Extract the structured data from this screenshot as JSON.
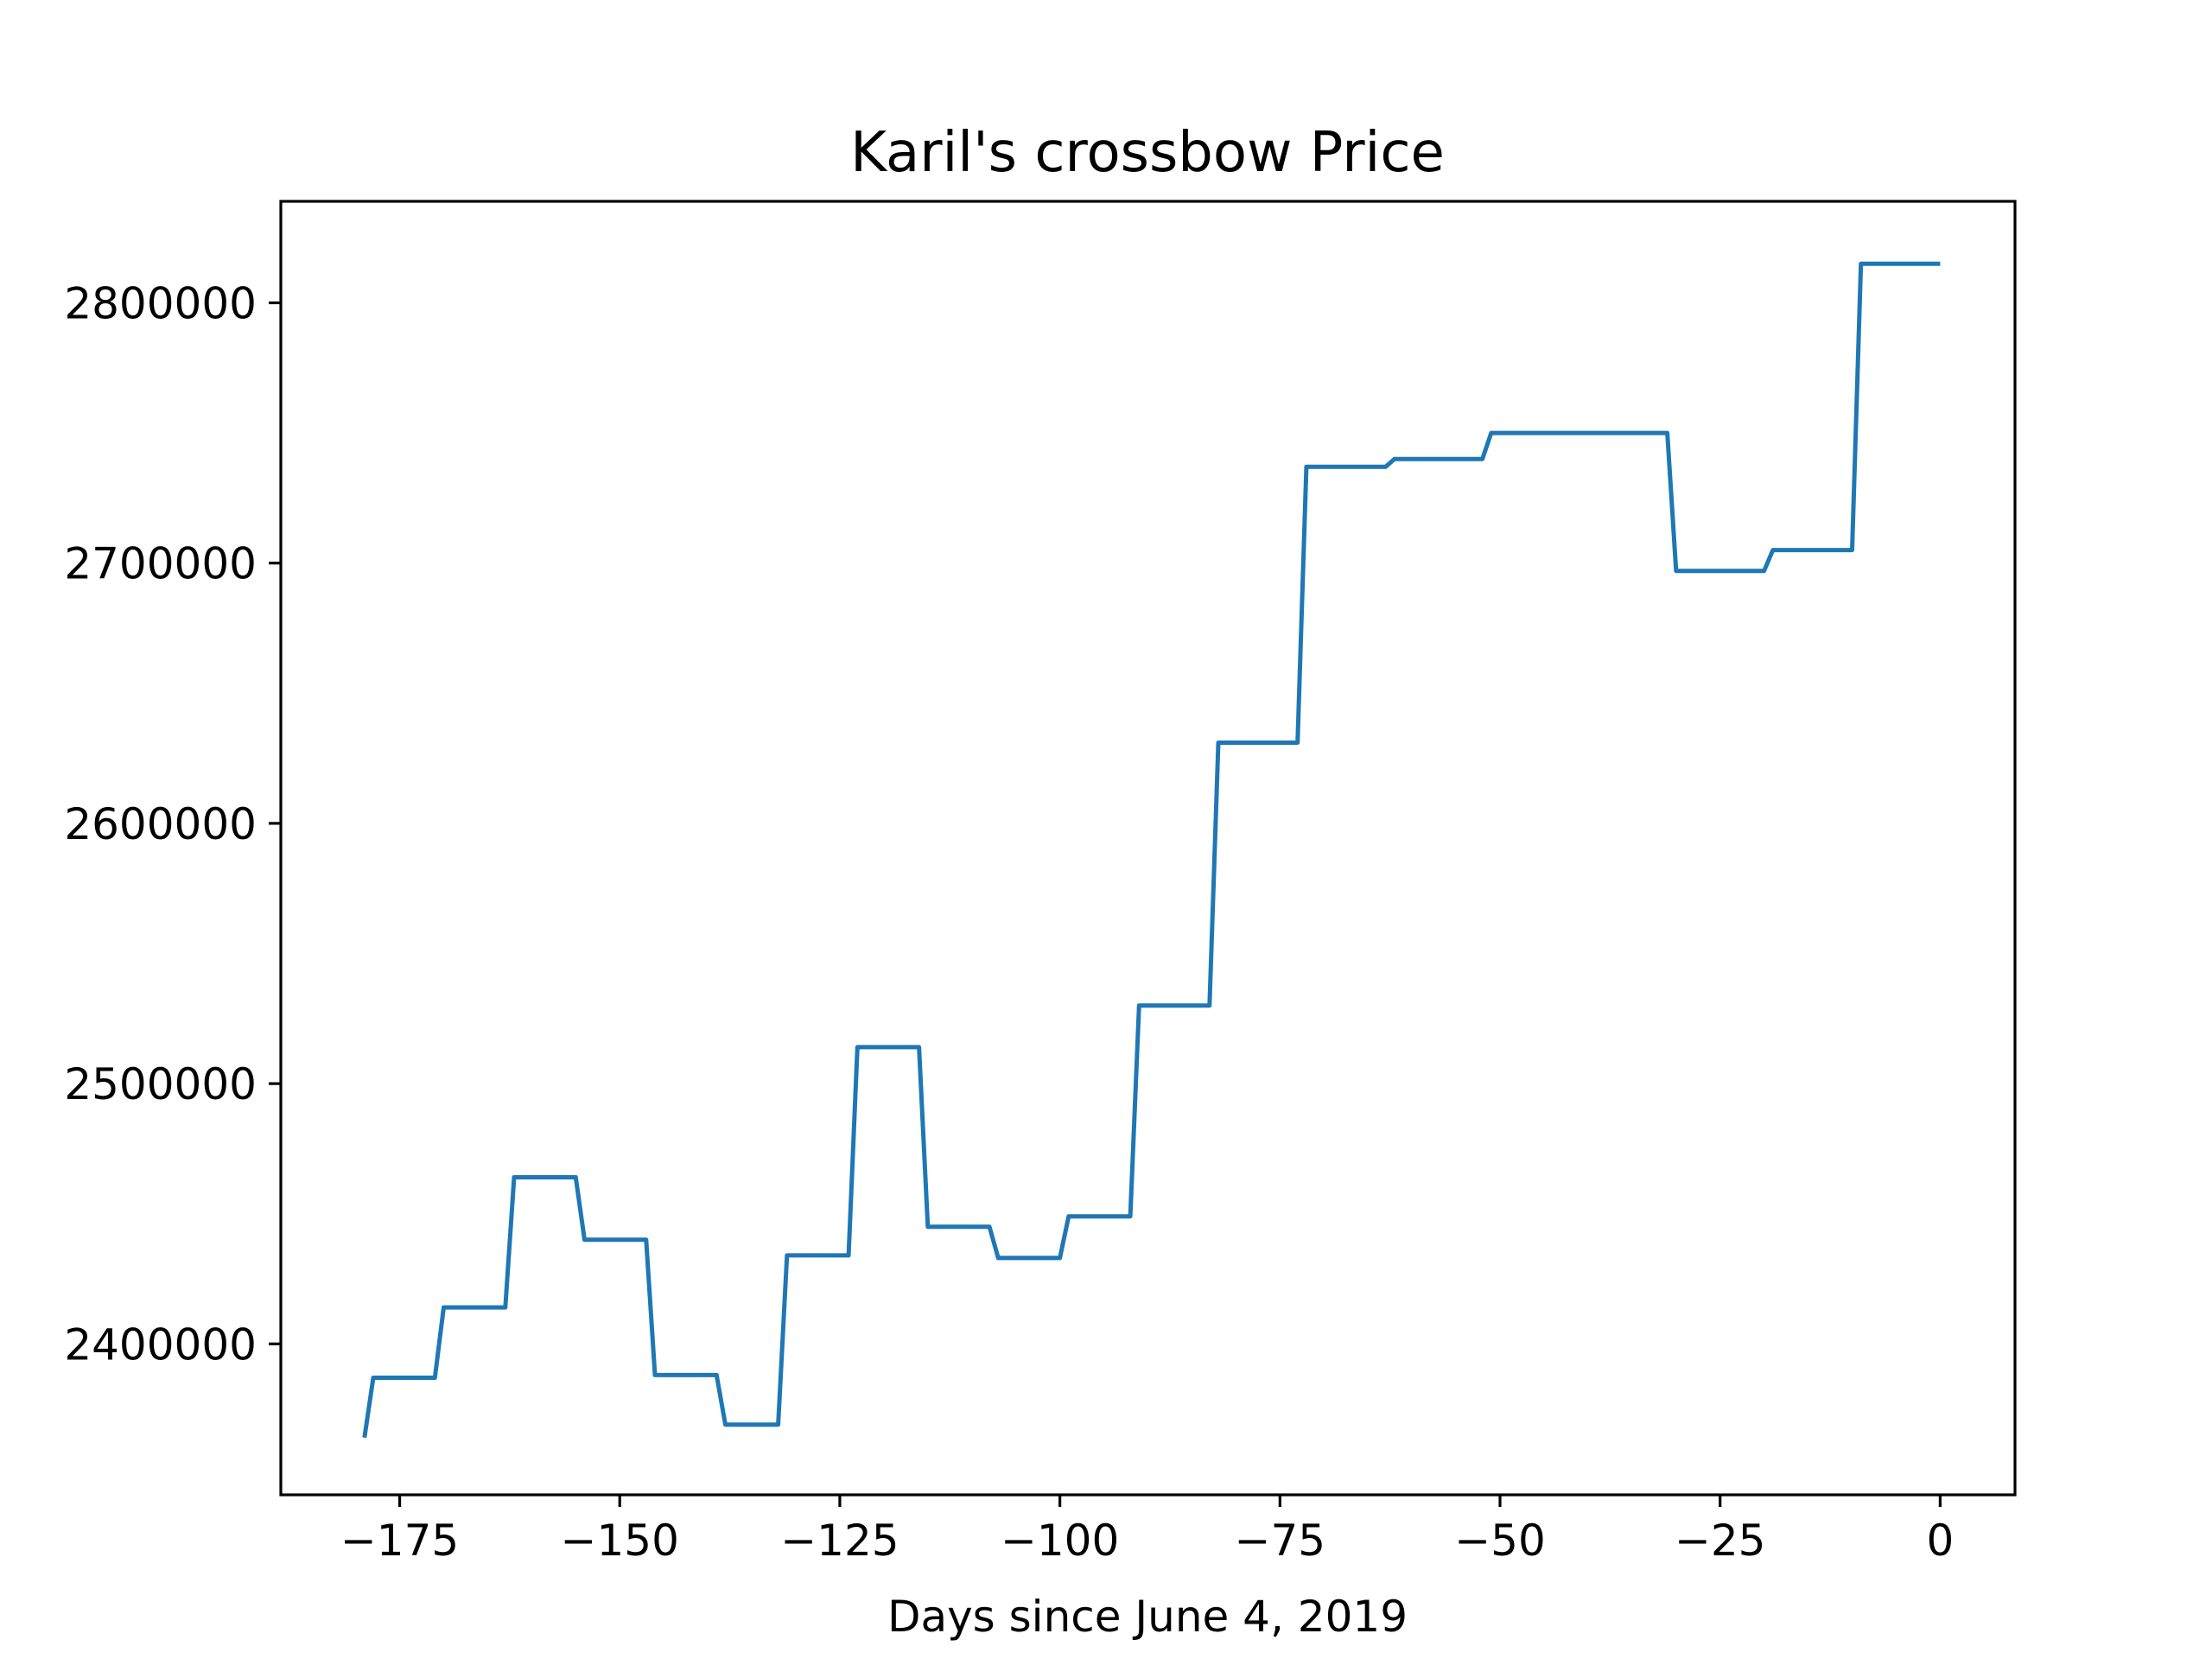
{
  "chart_data": {
    "type": "line",
    "title": "Karil's crossbow Price",
    "xlabel": "Days since June 4, 2019",
    "ylabel": "",
    "xlim": [
      -188.5,
      8.5
    ],
    "ylim": [
      2342000,
      2839000
    ],
    "xticks": [
      -175,
      -150,
      -125,
      -100,
      -75,
      -50,
      -25,
      0
    ],
    "xtick_labels": [
      "−175",
      "−150",
      "−125",
      "−100",
      "−75",
      "−50",
      "−25",
      "0"
    ],
    "yticks": [
      2400000,
      2500000,
      2600000,
      2700000,
      2800000
    ],
    "ytick_labels": [
      "2400000",
      "2500000",
      "2600000",
      "2700000",
      "2800000"
    ],
    "grid": false,
    "legend": "none",
    "series": [
      {
        "color": "#1f77b4",
        "x": [
          -179,
          -178,
          -171,
          -170,
          -163,
          -162,
          -155,
          -154,
          -147,
          -146,
          -139,
          -138,
          -132,
          -131,
          -124,
          -123,
          -116,
          -115,
          -108,
          -107,
          -100,
          -99,
          -92,
          -91,
          -83,
          -82,
          -73,
          -72,
          -63,
          -62,
          -52,
          -51,
          -41,
          -31,
          -30,
          -20,
          -19,
          -10,
          -9,
          0
        ],
        "y": [
          2364000,
          2387000,
          2387000,
          2414000,
          2414000,
          2464000,
          2464000,
          2440000,
          2440000,
          2388000,
          2388000,
          2369000,
          2369000,
          2434000,
          2434000,
          2514000,
          2514000,
          2445000,
          2445000,
          2433000,
          2433000,
          2449000,
          2449000,
          2530000,
          2530000,
          2631000,
          2631000,
          2737000,
          2737000,
          2740000,
          2740000,
          2750000,
          2750000,
          2750000,
          2697000,
          2697000,
          2705000,
          2705000,
          2815000,
          2815000
        ]
      }
    ]
  }
}
